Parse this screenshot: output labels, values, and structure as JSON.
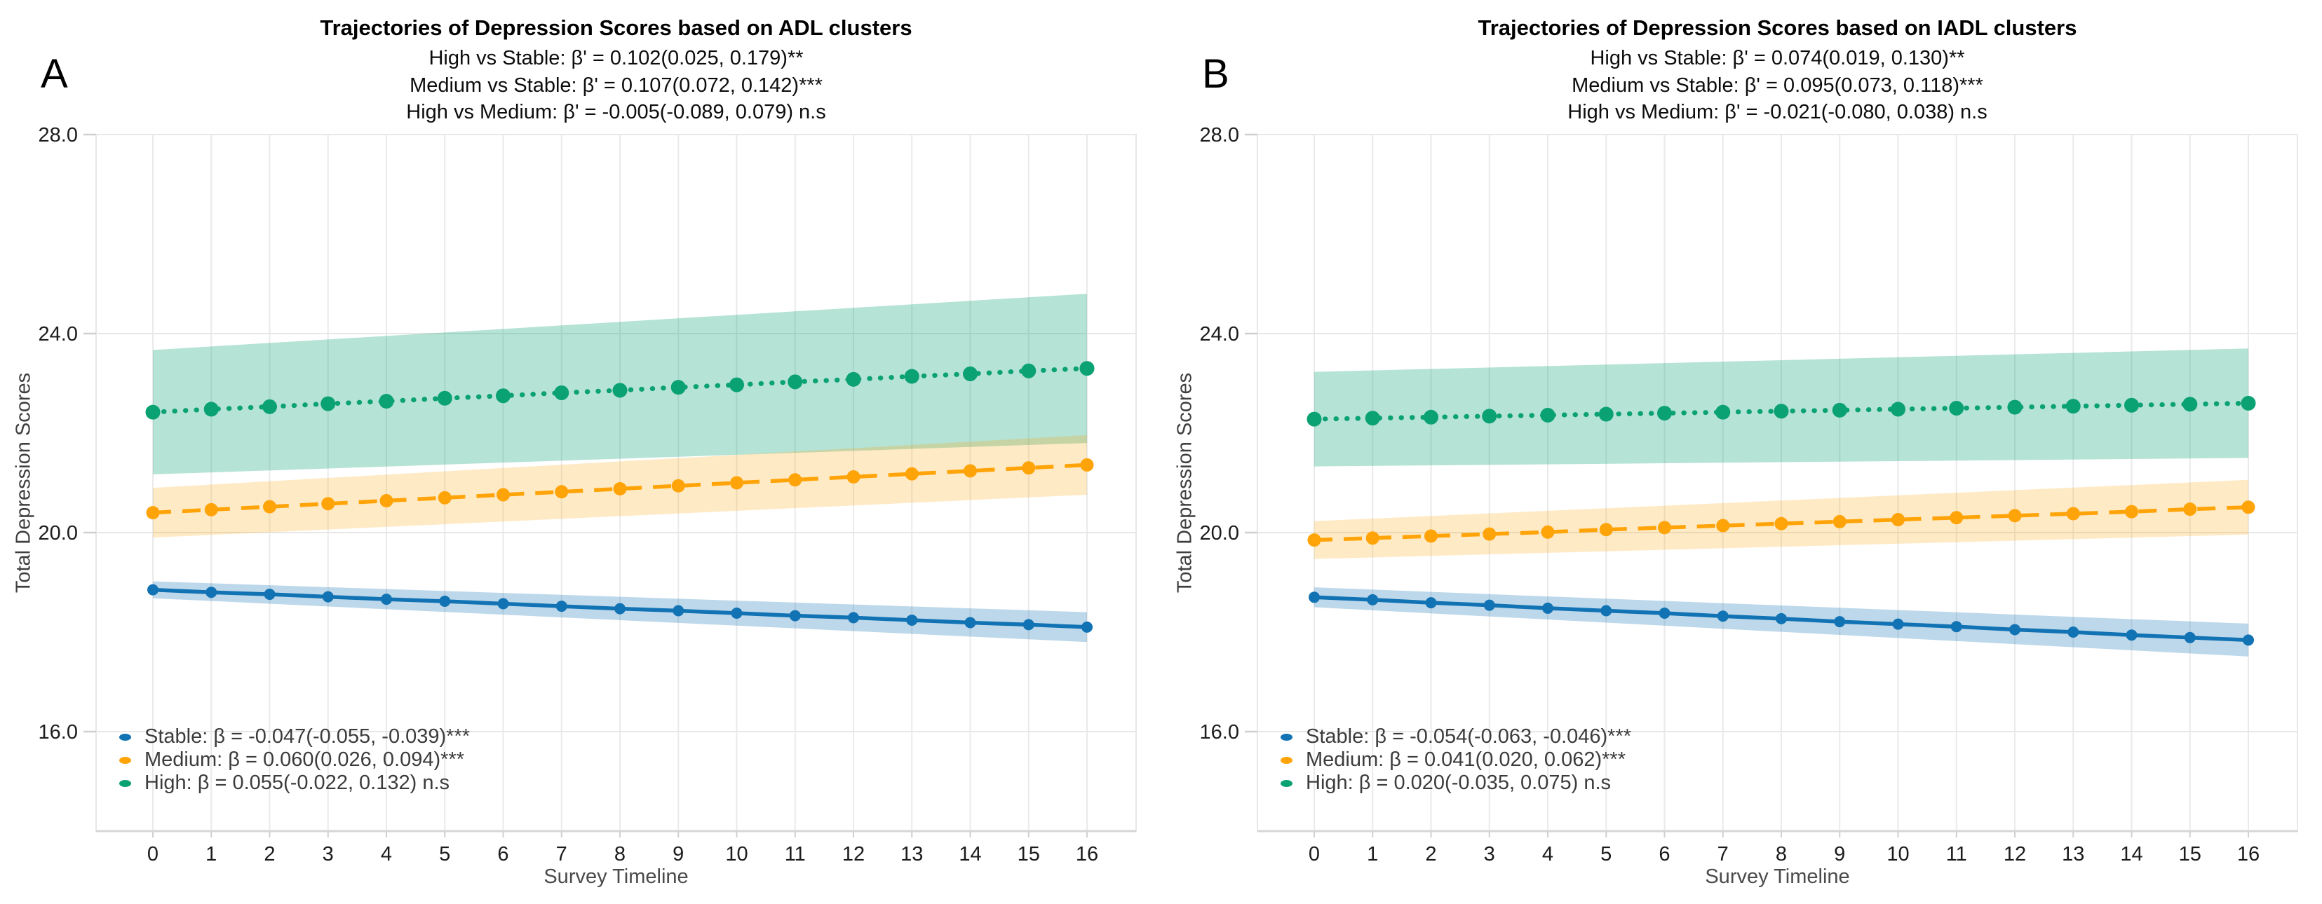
{
  "page": {
    "background": "#ffffff"
  },
  "chart_data": [
    {
      "type": "line",
      "panel_label": "A",
      "title": "Trajectories of Depression Scores based on ADL clusters",
      "subtitles": [
        "High vs Stable: β' = 0.102(0.025, 0.179)**",
        "Medium vs Stable: β' = 0.107(0.072, 0.142)***",
        "High vs Medium: β' = -0.005(-0.089, 0.079) n.s"
      ],
      "xlabel": "Survey Timeline",
      "ylabel": "Total Depression Scores",
      "x": [
        0,
        1,
        2,
        3,
        4,
        5,
        6,
        7,
        8,
        9,
        10,
        11,
        12,
        13,
        14,
        15,
        16
      ],
      "x_tick_labels": [
        "0",
        "1",
        "2",
        "3",
        "4",
        "5",
        "6",
        "7",
        "8",
        "9",
        "10",
        "11",
        "12",
        "13",
        "14",
        "15",
        "16"
      ],
      "y_tick_values": [
        28,
        24,
        20,
        16
      ],
      "y_tick_labels": [
        "28.0",
        "24.0",
        "20.0",
        "16.0"
      ],
      "ylim": [
        14,
        28
      ],
      "grid": true,
      "legend_position": "inside-bottom-left",
      "series": [
        {
          "name": "Stable",
          "legend_label": "Stable: β = -0.047(-0.055, -0.039)***",
          "beta": -0.047,
          "color": "#1273b4",
          "band_color": "rgba(18,115,180,0.28)",
          "line_style": "solid",
          "values": [
            18.85,
            18.8,
            18.76,
            18.71,
            18.66,
            18.62,
            18.57,
            18.52,
            18.47,
            18.43,
            18.38,
            18.33,
            18.29,
            18.24,
            18.19,
            18.15,
            18.1
          ],
          "ci_halfwidth_start": 0.17,
          "ci_halfwidth_end": 0.3
        },
        {
          "name": "Medium",
          "legend_label": "Medium: β = 0.060(0.026, 0.094)***",
          "beta": 0.06,
          "color": "#ffa408",
          "band_color": "rgba(255,164,8,0.23)",
          "line_style": "dashed",
          "values": [
            20.4,
            20.46,
            20.52,
            20.58,
            20.64,
            20.7,
            20.76,
            20.82,
            20.88,
            20.94,
            21.0,
            21.06,
            21.12,
            21.18,
            21.24,
            21.3,
            21.36
          ],
          "ci_halfwidth_start": 0.5,
          "ci_halfwidth_end": 0.6
        },
        {
          "name": "High",
          "legend_label": "High: β = 0.055(-0.022, 0.132) n.s",
          "beta": 0.055,
          "color": "#0aa173",
          "band_color": "rgba(10,161,115,0.30)",
          "line_style": "dotted",
          "values": [
            22.42,
            22.48,
            22.53,
            22.59,
            22.64,
            22.7,
            22.75,
            22.81,
            22.86,
            22.92,
            22.97,
            23.03,
            23.08,
            23.14,
            23.19,
            23.25,
            23.3
          ],
          "ci_halfwidth_start": 1.25,
          "ci_halfwidth_end": 1.5
        }
      ]
    },
    {
      "type": "line",
      "panel_label": "B",
      "title": "Trajectories of Depression Scores based on IADL clusters",
      "subtitles": [
        "High vs Stable: β' = 0.074(0.019, 0.130)**",
        "Medium vs Stable: β' = 0.095(0.073, 0.118)***",
        "High vs Medium: β' = -0.021(-0.080, 0.038) n.s"
      ],
      "xlabel": "Survey Timeline",
      "ylabel": "Total Depression Scores",
      "x": [
        0,
        1,
        2,
        3,
        4,
        5,
        6,
        7,
        8,
        9,
        10,
        11,
        12,
        13,
        14,
        15,
        16
      ],
      "x_tick_labels": [
        "0",
        "1",
        "2",
        "3",
        "4",
        "5",
        "6",
        "7",
        "8",
        "9",
        "10",
        "11",
        "12",
        "13",
        "14",
        "15",
        "16"
      ],
      "y_tick_values": [
        28,
        24,
        20,
        16
      ],
      "y_tick_labels": [
        "28.0",
        "24.0",
        "20.0",
        "16.0"
      ],
      "ylim": [
        14,
        28
      ],
      "grid": true,
      "legend_position": "inside-bottom-left",
      "series": [
        {
          "name": "Stable",
          "legend_label": "Stable: β = -0.054(-0.063, -0.046)***",
          "beta": -0.054,
          "color": "#1273b4",
          "band_color": "rgba(18,115,180,0.28)",
          "line_style": "solid",
          "values": [
            18.7,
            18.65,
            18.59,
            18.54,
            18.48,
            18.43,
            18.38,
            18.32,
            18.27,
            18.21,
            18.16,
            18.11,
            18.05,
            18.0,
            17.94,
            17.89,
            17.84
          ],
          "ci_halfwidth_start": 0.2,
          "ci_halfwidth_end": 0.33
        },
        {
          "name": "Medium",
          "legend_label": "Medium: β = 0.041(0.020, 0.062)***",
          "beta": 0.041,
          "color": "#ffa408",
          "band_color": "rgba(255,164,8,0.23)",
          "line_style": "dashed",
          "values": [
            19.85,
            19.89,
            19.93,
            19.97,
            20.01,
            20.06,
            20.1,
            20.14,
            20.18,
            20.22,
            20.26,
            20.3,
            20.34,
            20.38,
            20.42,
            20.47,
            20.51
          ],
          "ci_halfwidth_start": 0.38,
          "ci_halfwidth_end": 0.55
        },
        {
          "name": "High",
          "legend_label": "High: β = 0.020(-0.035, 0.075) n.s",
          "beta": 0.02,
          "color": "#0aa173",
          "band_color": "rgba(10,161,115,0.30)",
          "line_style": "dotted",
          "values": [
            22.28,
            22.3,
            22.32,
            22.34,
            22.36,
            22.38,
            22.4,
            22.42,
            22.44,
            22.46,
            22.48,
            22.5,
            22.52,
            22.54,
            22.56,
            22.58,
            22.6
          ],
          "ci_halfwidth_start": 0.95,
          "ci_halfwidth_end": 1.1
        }
      ]
    }
  ]
}
